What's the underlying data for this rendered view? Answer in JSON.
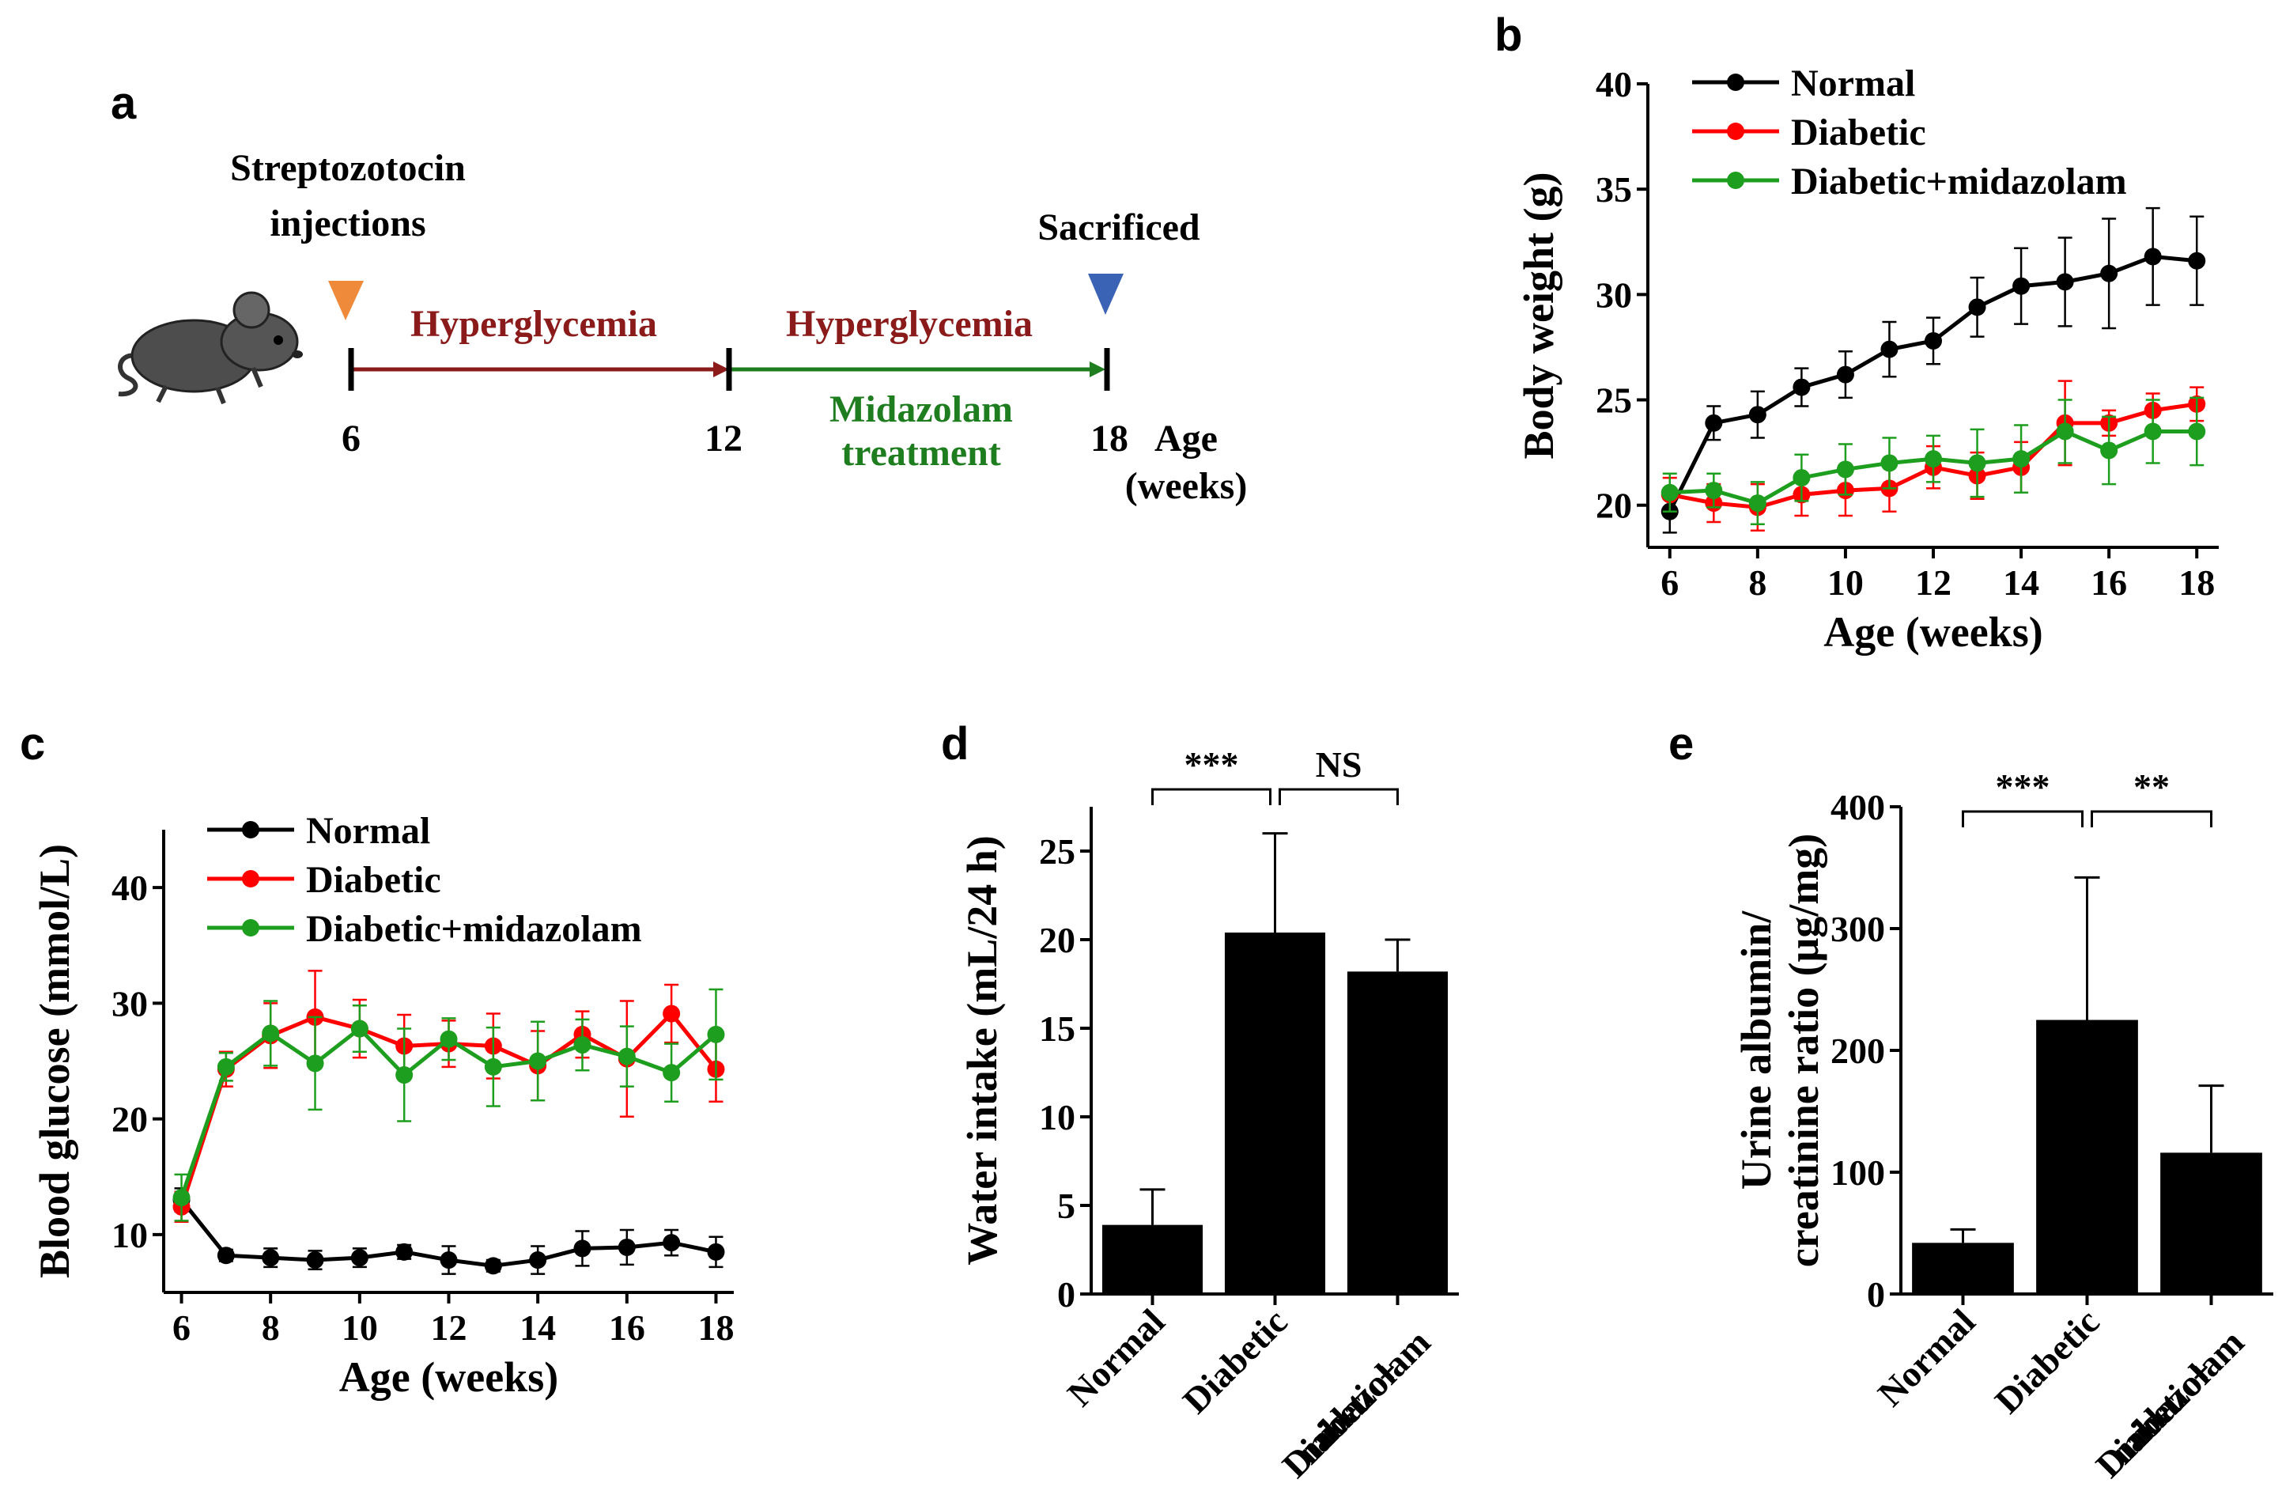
{
  "chart_data": [
    {
      "panel": "a",
      "type": "diagram",
      "top_label": "Streptozotocin injections",
      "top_label_lines": [
        "Streptozotocin",
        "injections"
      ],
      "sacrificed_label": "Sacrificed",
      "segments": [
        "Hyperglycemia",
        "Hyperglycemia"
      ],
      "treatment_lines": [
        "Midazolam",
        "treatment"
      ],
      "ticks": [
        "6",
        "12",
        "18"
      ],
      "axis_label_lines": [
        "Age",
        "(weeks)"
      ],
      "colors": {
        "injection_marker": "#ee8a3a",
        "sacrifice_marker": "#3b63b5",
        "hyperglycemia": "#8b1a1a",
        "treatment": "#1e7d1e"
      }
    },
    {
      "panel": "b",
      "type": "line",
      "xlabel": "Age (weeks)",
      "ylabel": "Body weight (g)",
      "xlim": [
        5.5,
        18.5
      ],
      "ylim": [
        18,
        40
      ],
      "xticks": [
        6,
        8,
        10,
        12,
        14,
        16,
        18
      ],
      "yticks": [
        20,
        25,
        30,
        35,
        40
      ],
      "legend": "top-left",
      "x": [
        6,
        7,
        8,
        9,
        10,
        11,
        12,
        13,
        14,
        15,
        16,
        17,
        18
      ],
      "series": [
        {
          "name": "Normal",
          "color": "#000000",
          "values": [
            19.7,
            23.9,
            24.3,
            25.6,
            26.2,
            27.4,
            27.8,
            29.4,
            30.4,
            30.6,
            31.0,
            31.8,
            31.6
          ],
          "errors": [
            1.0,
            0.8,
            1.1,
            0.9,
            1.1,
            1.3,
            1.1,
            1.4,
            1.8,
            2.1,
            2.6,
            2.3,
            2.1
          ]
        },
        {
          "name": "Diabetic",
          "color": "#ff0000",
          "values": [
            20.5,
            20.1,
            19.9,
            20.5,
            20.7,
            20.8,
            21.8,
            21.4,
            21.8,
            23.9,
            23.9,
            24.5,
            24.8
          ],
          "errors": [
            0.8,
            0.9,
            1.1,
            1.0,
            1.2,
            1.1,
            1.0,
            1.1,
            1.2,
            2.0,
            0.6,
            0.8,
            0.8
          ]
        },
        {
          "name": "Diabetic+midazolam",
          "color": "#1e9e1e",
          "values": [
            20.6,
            20.7,
            20.1,
            21.3,
            21.7,
            22.0,
            22.2,
            22.0,
            22.2,
            23.5,
            22.6,
            23.5,
            23.5
          ],
          "errors": [
            0.9,
            0.8,
            1.0,
            1.1,
            1.2,
            1.2,
            1.1,
            1.6,
            1.6,
            1.5,
            1.6,
            1.5,
            1.6
          ]
        }
      ]
    },
    {
      "panel": "c",
      "type": "line",
      "xlabel": "Age (weeks)",
      "ylabel": "Blood glucose (mmol/L)",
      "xlim": [
        5.6,
        18.4
      ],
      "ylim": [
        5,
        45
      ],
      "xticks": [
        6,
        8,
        10,
        12,
        14,
        16,
        18
      ],
      "yticks": [
        10,
        20,
        30,
        40
      ],
      "legend": "top-left",
      "x": [
        6,
        7,
        8,
        9,
        10,
        11,
        12,
        13,
        14,
        15,
        16,
        17,
        18
      ],
      "series": [
        {
          "name": "Normal",
          "color": "#000000",
          "values": [
            13.0,
            8.2,
            8.0,
            7.8,
            8.0,
            8.5,
            7.8,
            7.3,
            7.8,
            8.8,
            8.9,
            9.3,
            8.5
          ],
          "errors": [
            1.0,
            0.5,
            0.8,
            0.8,
            0.8,
            0.6,
            1.2,
            0.5,
            1.2,
            1.5,
            1.5,
            1.1,
            1.3
          ]
        },
        {
          "name": "Diabetic",
          "color": "#ff0000",
          "values": [
            12.4,
            24.3,
            27.2,
            28.8,
            27.8,
            26.3,
            26.5,
            26.3,
            24.6,
            27.3,
            25.2,
            29.1,
            24.3
          ],
          "errors": [
            1.3,
            1.5,
            2.8,
            4.0,
            2.5,
            2.7,
            2.0,
            2.8,
            3.0,
            2.0,
            5.0,
            2.5,
            2.8
          ]
        },
        {
          "name": "Diabetic+midazolam",
          "color": "#1e9e1e",
          "values": [
            13.2,
            24.5,
            27.4,
            24.8,
            27.8,
            23.8,
            26.9,
            24.5,
            25.0,
            26.4,
            25.4,
            24.0,
            27.3
          ],
          "errors": [
            2.0,
            1.2,
            2.8,
            4.0,
            2.0,
            4.0,
            1.8,
            3.4,
            3.4,
            2.2,
            2.6,
            2.5,
            3.9
          ]
        }
      ]
    },
    {
      "panel": "d",
      "type": "bar",
      "ylabel": "Water intake (mL/24 h)",
      "ylim": [
        0,
        27.5
      ],
      "yticks": [
        0,
        5,
        10,
        15,
        20,
        25
      ],
      "categories": [
        "Normal",
        "Diabetic",
        "Diabetic+ midazolam"
      ],
      "category_lines": [
        [
          "Normal"
        ],
        [
          "Diabetic"
        ],
        [
          "Diabetic+",
          "midazolam"
        ]
      ],
      "values": [
        3.9,
        20.4,
        18.2
      ],
      "errors": [
        2.0,
        5.6,
        1.8
      ],
      "color": "#000000",
      "significance": [
        {
          "from": 0,
          "to": 1,
          "label": "***"
        },
        {
          "from": 1,
          "to": 2,
          "label": "NS"
        }
      ]
    },
    {
      "panel": "e",
      "type": "bar",
      "ylabel": "Urine albumin/ creatinine ratio (μg/mg)",
      "ylabel_lines": [
        "Urine albumin/",
        "creatinine ratio (μg/mg)"
      ],
      "ylim": [
        0,
        400
      ],
      "yticks": [
        0,
        100,
        200,
        300,
        400
      ],
      "categories": [
        "Normal",
        "Diabetic",
        "Diabetic+ midazolam"
      ],
      "category_lines": [
        [
          "Normal"
        ],
        [
          "Diabetic"
        ],
        [
          "Diabetic+",
          "midazolam"
        ]
      ],
      "values": [
        42,
        225,
        116
      ],
      "errors": [
        11,
        117,
        55
      ],
      "color": "#000000",
      "significance": [
        {
          "from": 0,
          "to": 1,
          "label": "***"
        },
        {
          "from": 1,
          "to": 2,
          "label": "**"
        }
      ]
    }
  ]
}
